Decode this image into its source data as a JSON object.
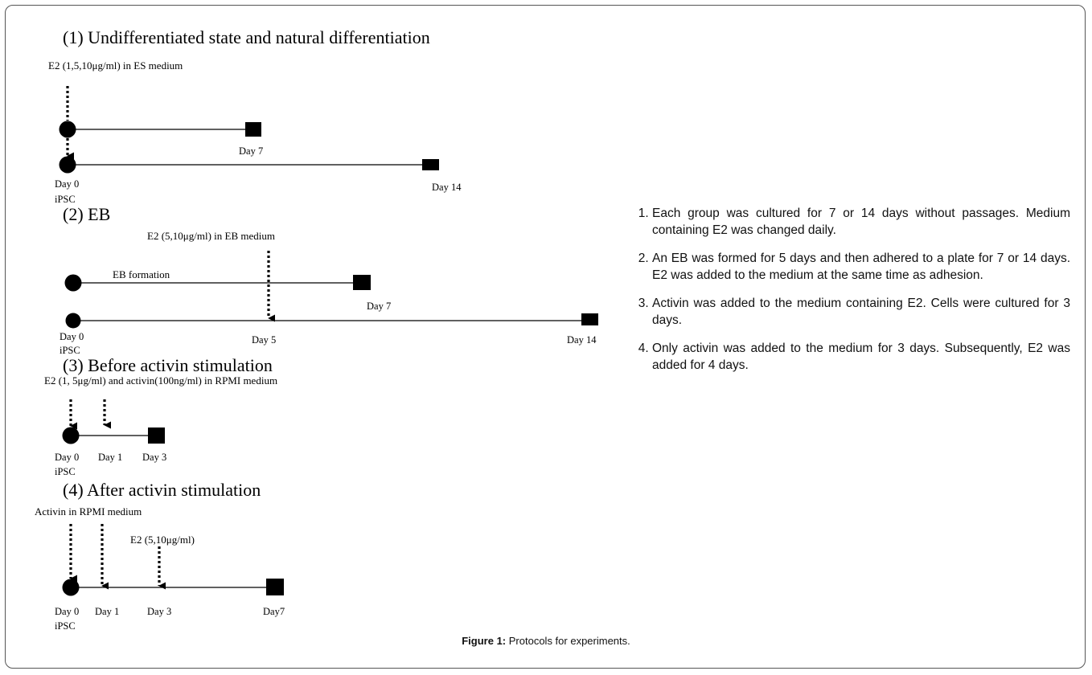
{
  "sections": [
    {
      "heading": "(1) Undifferentiated  state and natural differentiation",
      "treatment": "E2 (1,5,10μg/ml)  in ES medium",
      "labels": {
        "day7": "Day 7",
        "day0": "Day 0",
        "ipsc": "iPSC",
        "day14": "Day 14"
      }
    },
    {
      "heading": "(2) EB",
      "treatment": "E2 (5,10μg/ml)  in EB medium",
      "formation": "EB formation",
      "labels": {
        "day7": "Day 7",
        "day0": "Day 0",
        "ipsc": "iPSC",
        "day5": "Day 5",
        "day14": "Day 14"
      }
    },
    {
      "heading": "(3) Before activin stimulation",
      "treatment": "E2 (1, 5μg/ml)  and activin(100ng/ml)  in RPMI medium",
      "labels": {
        "day0": "Day 0",
        "day1": "Day 1",
        "day3": "Day 3",
        "ipsc": "iPSC"
      }
    },
    {
      "heading": "(4) After activin stimulation",
      "treatment": "Activin in RPMI medium",
      "treatment2": "E2 (5,10μg/ml)",
      "labels": {
        "day0": "Day 0",
        "day1": "Day 1",
        "day3": "Day 3",
        "day7": "Day7",
        "ipsc": "iPSC"
      }
    }
  ],
  "notes": [
    "Each group was cultured for 7 or 14 days without passages. Medium containing E2 was changed daily.",
    "An EB was formed for 5 days and then adhered to a plate for 7 or 14 days. E2 was added to the medium at the same time as adhesion.",
    "Activin was added to the medium containing E2. Cells were cultured for 3 days.",
    "Only activin was added to the medium for 3 days. Subsequently, E2 was added for 4 days."
  ],
  "caption": {
    "label": "Figure 1:",
    "text": " Protocols for experiments."
  }
}
